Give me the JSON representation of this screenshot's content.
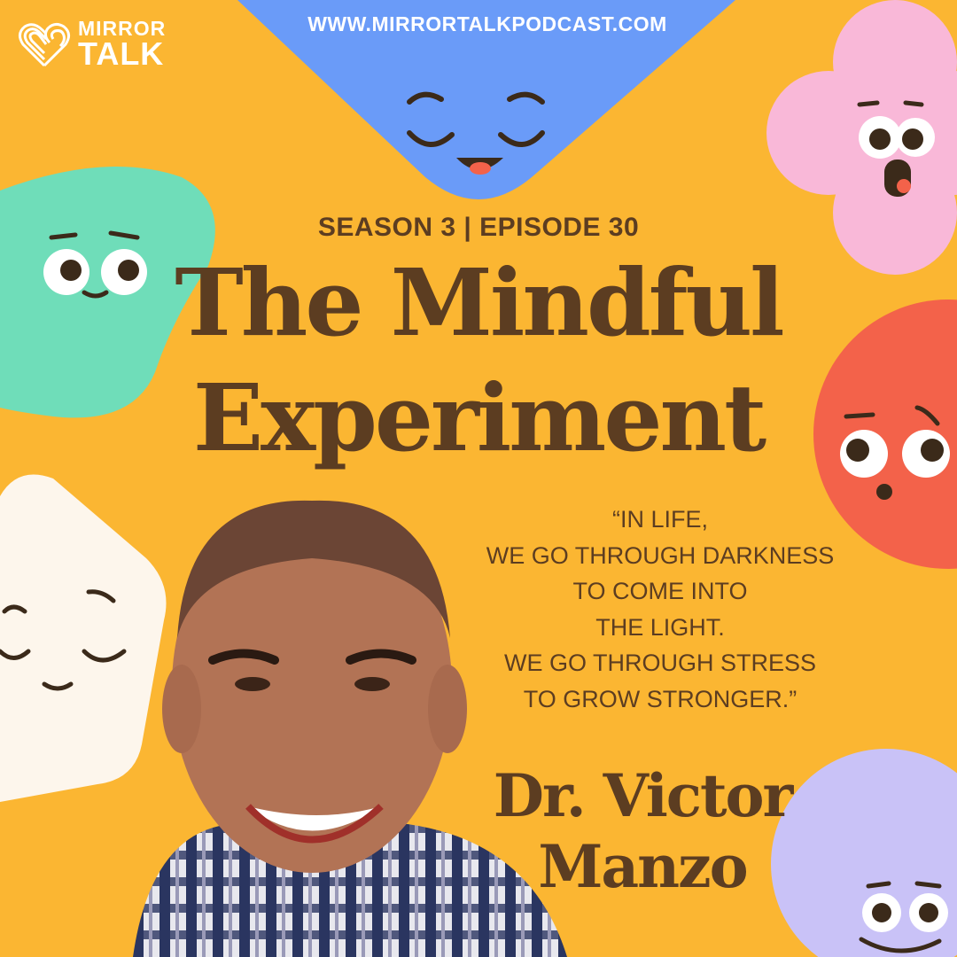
{
  "brand": {
    "line1": "MIRROR",
    "line2": "TALK",
    "logo_icon": "heart-lines-icon"
  },
  "website": "WWW.MIRRORTALKPODCAST.COM",
  "episode_label": "SEASON 3 | EPISODE 30",
  "title": {
    "line1": "The Mindful",
    "line2": "Experiment"
  },
  "quote": [
    "“IN LIFE,",
    "WE GO THROUGH DARKNESS",
    "TO COME INTO",
    "THE LIGHT.",
    "WE GO THROUGH STRESS",
    "TO GROW STRONGER.”"
  ],
  "guest": {
    "line1": "Dr. Victor",
    "line2": "Manzo"
  },
  "colors": {
    "background": "#FBB632",
    "text": "#5C3D21",
    "blue": "#6A9BF8",
    "pink": "#F9B8D8",
    "teal": "#6FDDB9",
    "red": "#F3624A",
    "cream": "#FDF6EC",
    "lavender": "#C9C2F7"
  }
}
